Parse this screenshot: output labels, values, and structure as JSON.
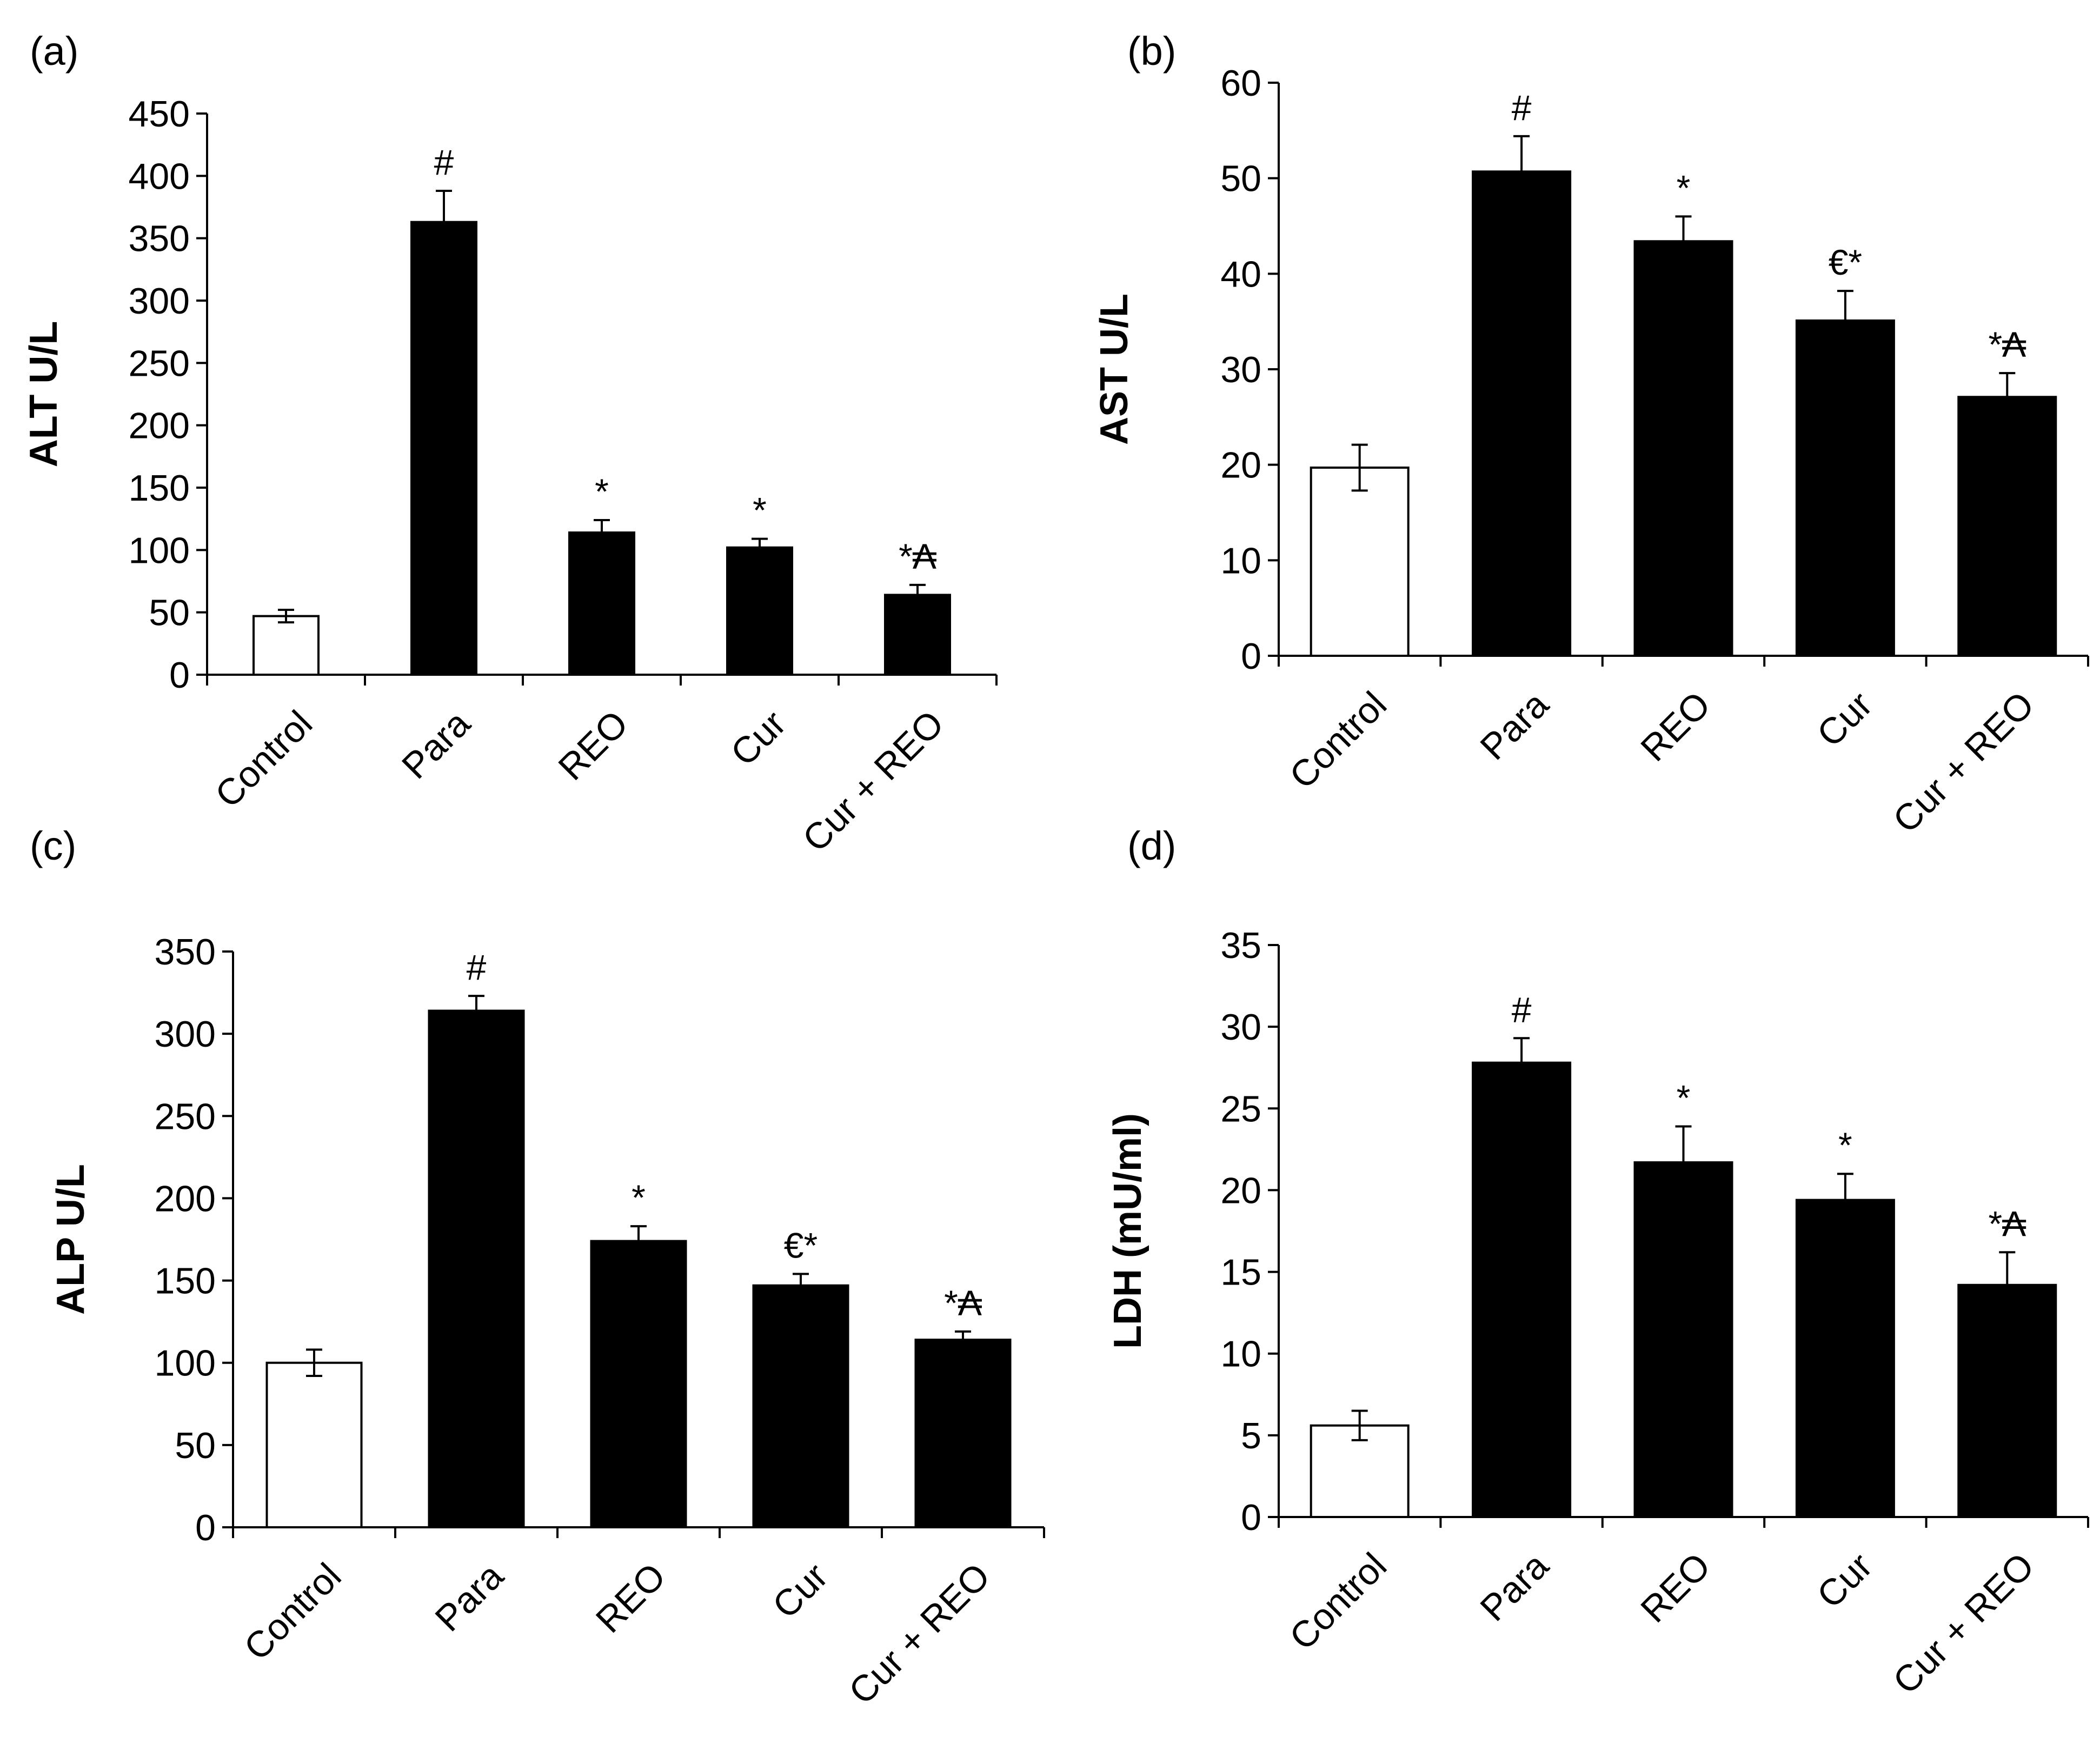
{
  "chart_data": [
    {
      "panel": "(a)",
      "type": "bar",
      "title": "",
      "xlabel": "",
      "ylabel": "ALT U/L",
      "ylim": [
        0,
        450
      ],
      "yticks": [
        0,
        50,
        100,
        150,
        200,
        250,
        300,
        350,
        400,
        450
      ],
      "grid": false,
      "categories": [
        "Control",
        "Para",
        "REO",
        "Cur",
        "Cur + REO"
      ],
      "values": [
        47,
        363,
        114,
        102,
        64
      ],
      "errors": [
        5,
        25,
        10,
        7,
        8
      ],
      "fills": [
        "#ffffff",
        "#000000",
        "#000000",
        "#000000",
        "#000000"
      ],
      "annotations": [
        "",
        "#",
        "*",
        "*",
        "*₳"
      ]
    },
    {
      "panel": "(b)",
      "type": "bar",
      "title": "",
      "xlabel": "",
      "ylabel": "AST U/L",
      "ylim": [
        0,
        60
      ],
      "yticks": [
        0,
        10,
        20,
        30,
        40,
        50,
        60
      ],
      "grid": false,
      "categories": [
        "Control",
        "Para",
        "REO",
        "Cur",
        "Cur + REO"
      ],
      "values": [
        19.7,
        50.7,
        43.4,
        35.1,
        27.1
      ],
      "errors": [
        2.4,
        3.7,
        2.6,
        3.1,
        2.5
      ],
      "fills": [
        "#ffffff",
        "#000000",
        "#000000",
        "#000000",
        "#000000"
      ],
      "annotations": [
        "",
        "#",
        "*",
        "€*",
        "*₳"
      ]
    },
    {
      "panel": "(c)",
      "type": "bar",
      "title": "",
      "xlabel": "",
      "ylabel": "ALP U/L",
      "ylim": [
        0,
        350
      ],
      "yticks": [
        0,
        50,
        100,
        150,
        200,
        250,
        300,
        350
      ],
      "grid": false,
      "categories": [
        "Control",
        "Para",
        "REO",
        "Cur",
        "Cur + REO"
      ],
      "values": [
        100,
        314,
        174,
        147,
        114
      ],
      "errors": [
        8,
        9,
        9,
        7,
        5
      ],
      "fills": [
        "#ffffff",
        "#000000",
        "#000000",
        "#000000",
        "#000000"
      ],
      "annotations": [
        "",
        "#",
        "*",
        "€*",
        "*₳"
      ]
    },
    {
      "panel": "(d)",
      "type": "bar",
      "title": "",
      "xlabel": "",
      "ylabel": "LDH (mU/ml)",
      "ylim": [
        0,
        35
      ],
      "yticks": [
        0,
        5,
        10,
        15,
        20,
        25,
        30,
        35
      ],
      "grid": false,
      "categories": [
        "Control",
        "Para",
        "REO",
        "Cur",
        "Cur + REO"
      ],
      "values": [
        5.6,
        27.8,
        21.7,
        19.4,
        14.2
      ],
      "errors": [
        0.9,
        1.5,
        2.2,
        1.6,
        2.0
      ],
      "fills": [
        "#ffffff",
        "#000000",
        "#000000",
        "#000000",
        "#000000"
      ],
      "annotations": [
        "",
        "#",
        "*",
        "*",
        "*₳"
      ]
    }
  ]
}
